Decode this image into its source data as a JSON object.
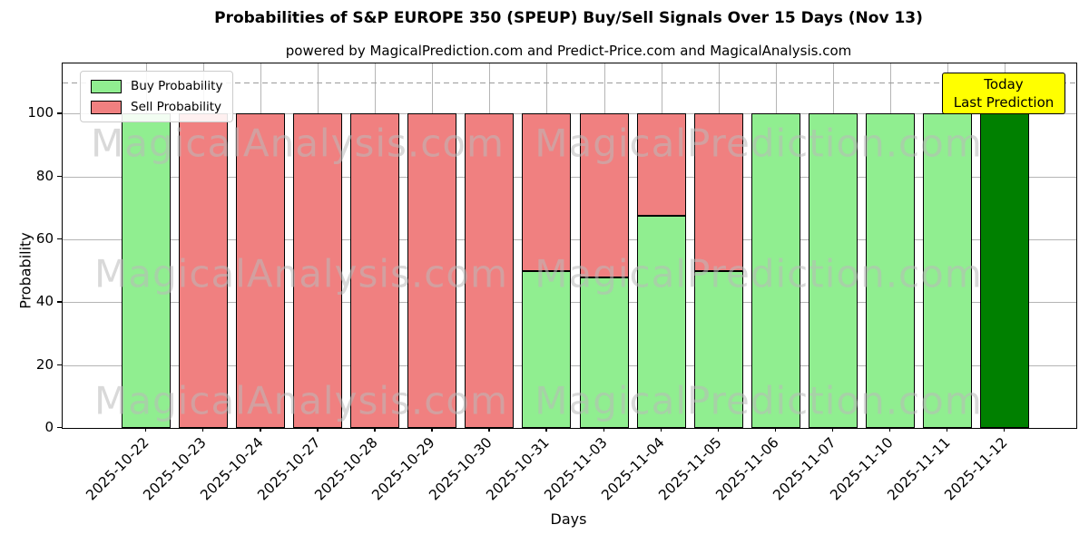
{
  "chart_data": {
    "type": "bar",
    "stacked": true,
    "title": "Probabilities of S&P EUROPE 350 (SPEUP) Buy/Sell Signals Over 15 Days (Nov 13)",
    "subtitle": "powered by MagicalPrediction.com and Predict-Price.com and MagicalAnalysis.com",
    "xlabel": "Days",
    "ylabel": "Probability",
    "ylim": [
      0,
      116
    ],
    "yticks": [
      0,
      20,
      40,
      60,
      80,
      100
    ],
    "grid": true,
    "legend_position": "upper left",
    "threshold_line": {
      "value": 110,
      "style": "dashed",
      "color": "#9a9a9a"
    },
    "categories": [
      "2025-10-22",
      "2025-10-23",
      "2025-10-24",
      "2025-10-27",
      "2025-10-28",
      "2025-10-29",
      "2025-10-30",
      "2025-10-31",
      "2025-11-03",
      "2025-11-04",
      "2025-11-05",
      "2025-11-06",
      "2025-11-07",
      "2025-11-10",
      "2025-11-11",
      "2025-11-12"
    ],
    "series": [
      {
        "name": "Buy Probability",
        "color": "#90EE90",
        "values": [
          100,
          0,
          0,
          0,
          0,
          0,
          0,
          50,
          48,
          67.5,
          50,
          100,
          100,
          100,
          100,
          100
        ]
      },
      {
        "name": "Sell Probability",
        "color": "#F08080",
        "values": [
          0,
          100,
          100,
          100,
          100,
          100,
          100,
          50,
          52,
          32.5,
          50,
          0,
          0,
          0,
          0,
          0
        ]
      }
    ],
    "today_bar": {
      "category": "2025-11-12",
      "index": 15,
      "color": "#008000"
    },
    "annotation_box": {
      "lines": [
        "Today",
        "Last Prediction"
      ],
      "bg_color": "#FFFF00",
      "border_color": "#000000"
    },
    "watermarks": {
      "left_text": "MagicalAnalysis.com",
      "right_text": "MagicalPrediction.com"
    }
  }
}
